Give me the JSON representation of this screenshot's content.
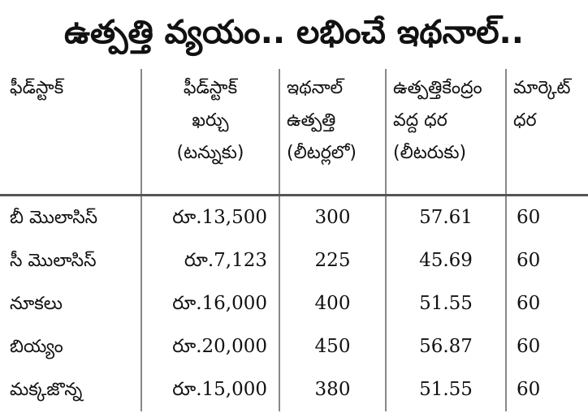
{
  "title": "ఉత్పత్తి వ్యయం.. లభించే ఇథనాల్..",
  "table": {
    "headers": [
      {
        "lines": [
          "ఫీడ్‌స్టాక్"
        ]
      },
      {
        "lines": [
          "ఫీడ్‌స్టాక్",
          "ఖర్చు",
          "(టన్నుకు)"
        ]
      },
      {
        "lines": [
          "ఇథనాల్",
          "ఉత్పత్తి",
          "(లీటర్లలో)"
        ]
      },
      {
        "lines": [
          "ఉత్పత్తికేంద్రం",
          "వద్ద ధర",
          "(లీటరుకు)"
        ]
      },
      {
        "lines": [
          "మార్కెట్",
          "ధర"
        ]
      }
    ],
    "rows": [
      {
        "feedstock": "బీ మొలాసిస్",
        "cost": "రూ.13,500",
        "ethanol": "300",
        "plant_price": "57.61",
        "market_price": "60"
      },
      {
        "feedstock": "సీ మొలాసిస్",
        "cost": "రూ.7,123",
        "ethanol": "225",
        "plant_price": "45.69",
        "market_price": "60"
      },
      {
        "feedstock": "నూకలు",
        "cost": "రూ.16,000",
        "ethanol": "400",
        "plant_price": "51.55",
        "market_price": "60"
      },
      {
        "feedstock": "బియ్యం",
        "cost": "రూ.20,000",
        "ethanol": "450",
        "plant_price": "56.87",
        "market_price": "60"
      },
      {
        "feedstock": "మక్కజొన్న",
        "cost": "రూ.15,000",
        "ethanol": "380",
        "plant_price": "51.55",
        "market_price": "60"
      }
    ]
  }
}
